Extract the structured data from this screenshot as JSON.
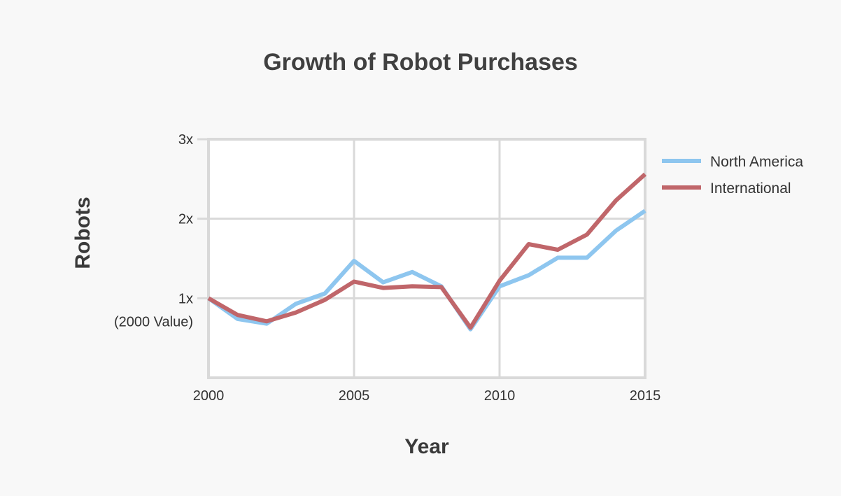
{
  "chart_data": {
    "type": "line",
    "title": "Growth of Robot Purchases",
    "xlabel": "Year",
    "ylabel": "Robots",
    "x": [
      2000,
      2001,
      2002,
      2003,
      2004,
      2005,
      2006,
      2007,
      2008,
      2009,
      2010,
      2011,
      2012,
      2013,
      2014,
      2015
    ],
    "series": [
      {
        "name": "North America",
        "color": "#8ec6ef",
        "values": [
          1.0,
          0.74,
          0.68,
          0.93,
          1.06,
          1.47,
          1.2,
          1.33,
          1.15,
          0.61,
          1.15,
          1.29,
          1.51,
          1.51,
          1.85,
          2.1
        ]
      },
      {
        "name": "International",
        "color": "#c0666a",
        "values": [
          1.0,
          0.79,
          0.71,
          0.82,
          0.98,
          1.21,
          1.13,
          1.15,
          1.14,
          0.63,
          1.22,
          1.68,
          1.61,
          1.8,
          2.23,
          2.56
        ]
      }
    ],
    "xlim": [
      2000,
      2015
    ],
    "ylim": [
      0,
      3
    ],
    "x_ticks": [
      {
        "value": 2000,
        "label": "2000"
      },
      {
        "value": 2005,
        "label": "2005"
      },
      {
        "value": 2010,
        "label": "2010"
      },
      {
        "value": 2015,
        "label": "2015"
      }
    ],
    "y_ticks": [
      {
        "value": 1,
        "label": "1x",
        "sublabel": "(2000 Value)"
      },
      {
        "value": 2,
        "label": "2x"
      },
      {
        "value": 3,
        "label": "3x"
      }
    ],
    "grid": true,
    "legend_position": "right"
  }
}
